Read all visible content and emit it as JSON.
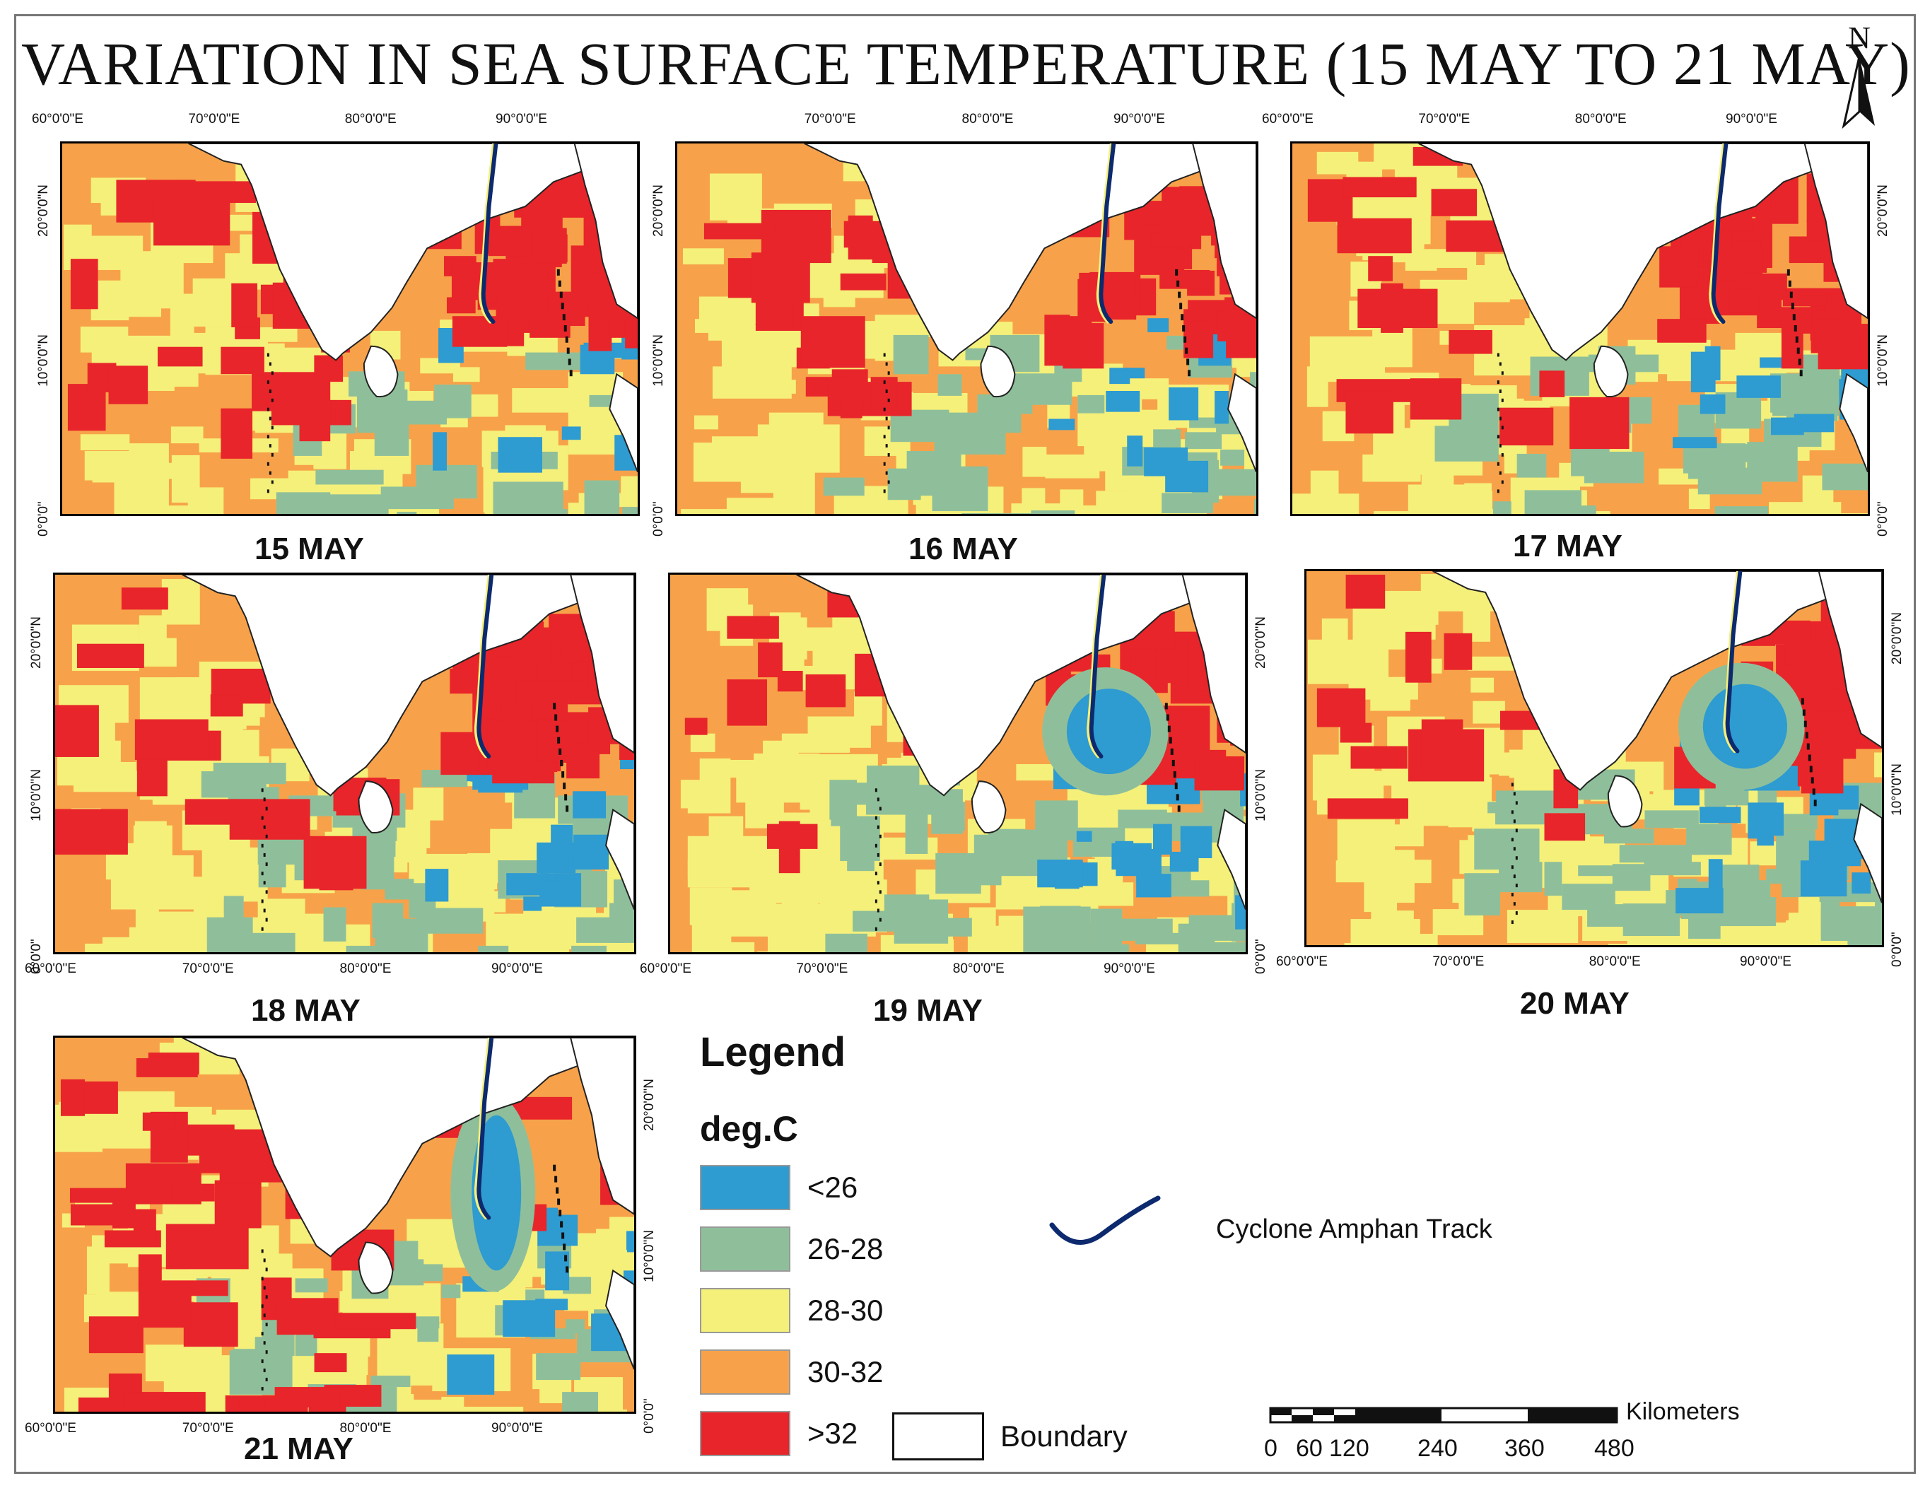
{
  "title": "VARIATION IN SEA SURFACE TEMPERATURE (15 MAY TO 21 MAY)",
  "north_label": "N",
  "x_ticks": [
    "60°0'0\"E",
    "70°0'0\"E",
    "80°0'0\"E",
    "90°0'0\"E"
  ],
  "y_ticks": [
    "20°0'0\"N",
    "10°0'0\"N",
    "0°0'0\""
  ],
  "panels": [
    {
      "date": "15 MAY"
    },
    {
      "date": "16 MAY"
    },
    {
      "date": "17 MAY"
    },
    {
      "date": "18 MAY"
    },
    {
      "date": "19 MAY"
    },
    {
      "date": "20 MAY"
    },
    {
      "date": "21 MAY"
    }
  ],
  "legend": {
    "title": "Legend",
    "unit": "deg.C",
    "classes": [
      {
        "label": "<26",
        "color": "#2e9bd1"
      },
      {
        "label": "26-28",
        "color": "#8fbf9a"
      },
      {
        "label": "28-30",
        "color": "#f5f07a"
      },
      {
        "label": "30-32",
        "color": "#f7a24a"
      },
      {
        "label": ">32",
        "color": "#e8252a"
      }
    ],
    "boundary_label": "Boundary",
    "track_label": "Cyclone Amphan Track",
    "track_color": "#0d2a6e"
  },
  "scale_bar": {
    "unit": "Kilometers",
    "labels": [
      "0",
      "60",
      "120",
      "240",
      "360",
      "480"
    ]
  }
}
